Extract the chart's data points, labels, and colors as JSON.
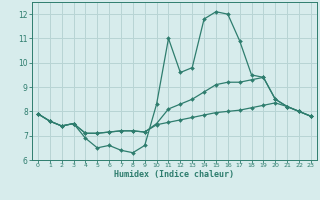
{
  "xlabel": "Humidex (Indice chaleur)",
  "x": [
    0,
    1,
    2,
    3,
    4,
    5,
    6,
    7,
    8,
    9,
    10,
    11,
    12,
    13,
    14,
    15,
    16,
    17,
    18,
    19,
    20,
    21,
    22,
    23
  ],
  "line1": [
    7.9,
    7.6,
    7.4,
    7.5,
    6.9,
    6.5,
    6.6,
    6.4,
    6.3,
    6.6,
    8.3,
    11.0,
    9.6,
    9.8,
    11.8,
    12.1,
    12.0,
    10.9,
    9.5,
    9.4,
    8.5,
    8.2,
    8.0,
    7.8
  ],
  "line2": [
    7.9,
    7.6,
    7.4,
    7.5,
    7.1,
    7.1,
    7.15,
    7.2,
    7.2,
    7.15,
    7.5,
    8.1,
    8.3,
    8.5,
    8.8,
    9.1,
    9.2,
    9.2,
    9.3,
    9.4,
    8.5,
    8.2,
    8.0,
    7.8
  ],
  "line3": [
    7.9,
    7.6,
    7.4,
    7.5,
    7.1,
    7.1,
    7.15,
    7.2,
    7.2,
    7.15,
    7.45,
    7.55,
    7.65,
    7.75,
    7.85,
    7.95,
    8.0,
    8.05,
    8.15,
    8.25,
    8.35,
    8.2,
    8.0,
    7.8
  ],
  "line_color": "#2e7d6e",
  "bg_color": "#d7ecec",
  "grid_color": "#b8d4d4",
  "ylim": [
    6,
    12.5
  ],
  "xlim": [
    -0.5,
    23.5
  ],
  "yticks": [
    6,
    7,
    8,
    9,
    10,
    11,
    12
  ],
  "xticks": [
    0,
    1,
    2,
    3,
    4,
    5,
    6,
    7,
    8,
    9,
    10,
    11,
    12,
    13,
    14,
    15,
    16,
    17,
    18,
    19,
    20,
    21,
    22,
    23
  ]
}
